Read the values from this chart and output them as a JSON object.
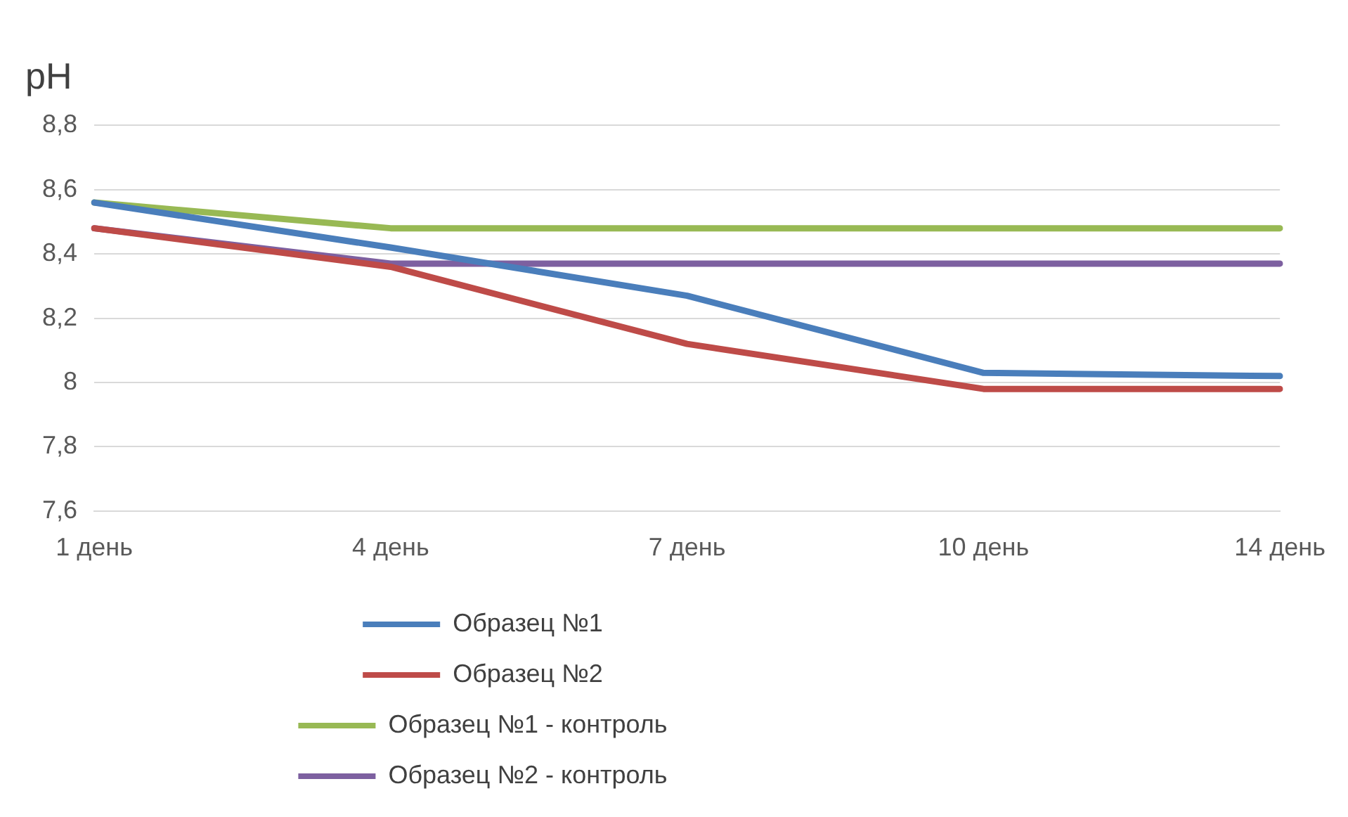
{
  "chart_data": {
    "type": "line",
    "ylabel": "pH",
    "categories": [
      "1 день",
      "4 день",
      "7 день",
      "10 день",
      "14 день"
    ],
    "series": [
      {
        "name": "Образец №1",
        "color": "#4a7ebb",
        "values": [
          8.56,
          8.42,
          8.27,
          8.03,
          8.02
        ]
      },
      {
        "name": "Образец №2",
        "color": "#be4b48",
        "values": [
          8.48,
          8.36,
          8.12,
          7.98,
          7.98
        ]
      },
      {
        "name": "Образец №1 - контроль",
        "color": "#98b954",
        "values": [
          8.56,
          8.48,
          8.48,
          8.48,
          8.48
        ]
      },
      {
        "name": "Образец №2 - контроль",
        "color": "#7d60a0",
        "values": [
          8.48,
          8.37,
          8.37,
          8.37,
          8.37
        ]
      }
    ],
    "ylim": [
      7.6,
      8.8
    ],
    "yticks": [
      {
        "value": 7.6,
        "label": "7,6"
      },
      {
        "value": 7.8,
        "label": "7,8"
      },
      {
        "value": 8,
        "label": "8"
      },
      {
        "value": 8.2,
        "label": "8,2"
      },
      {
        "value": 8.4,
        "label": "8,4"
      },
      {
        "value": 8.6,
        "label": "8,6"
      },
      {
        "value": 8.8,
        "label": "8,8"
      }
    ],
    "grid": "y",
    "legend": "bottom",
    "marker": "none",
    "line_style": "solid"
  }
}
